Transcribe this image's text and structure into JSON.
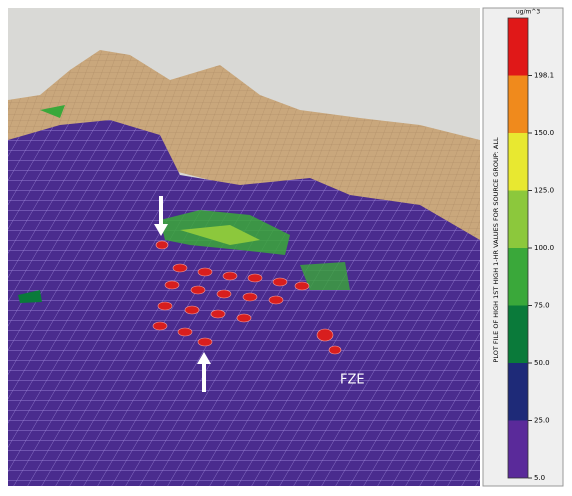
{
  "legend": {
    "unit": "ug/m^3",
    "title": "PLOT FILE OF HIGH 1ST HIGH 1-HR VALUES FOR SOURCE GROUP: ALL",
    "ticks": [
      {
        "value": 5,
        "label": "5.0"
      },
      {
        "value": 25,
        "label": "25.0"
      },
      {
        "value": 50,
        "label": "50.0"
      },
      {
        "value": 75,
        "label": "75.0"
      },
      {
        "value": 100,
        "label": "100.0"
      },
      {
        "value": 125,
        "label": "125.0"
      },
      {
        "value": 150,
        "label": "150.0"
      },
      {
        "value": 198.1,
        "label": "198.1"
      }
    ]
  },
  "scene": {
    "label": "FZE"
  }
}
